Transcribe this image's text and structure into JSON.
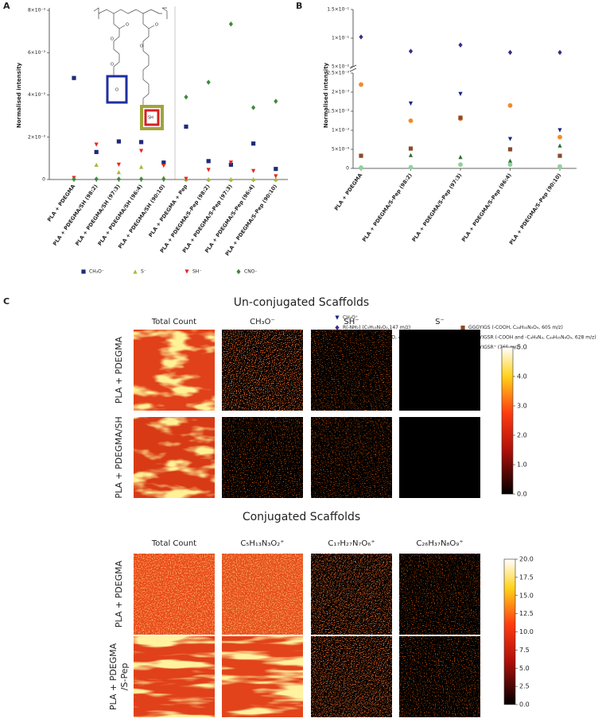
{
  "panel_labels": [
    "A",
    "B",
    "C"
  ],
  "structure": {
    "labels": [
      "O",
      "O",
      "O",
      "O",
      "O",
      "O",
      "SH"
    ]
  },
  "chart_data": [
    {
      "type": "dot",
      "y_label": "Normalised intensity",
      "categories": [
        "PLA + PDEGMA",
        "PLA + PDEGMA/SH (98:2)",
        "PLA + PDEGMA/SH (97:3)",
        "PLA + PDEGMA/SH (96:4)",
        "PLA + PDEGMA/SH (90:10)",
        "PLA + PDEGMA + Pep",
        "PLA + PDEGMA/S-Pep (98:2)",
        "PLA + PDEGMA/S-Pep (97:3)",
        "PLA + PDEGMA/S-Pep (96:4)",
        "PLA + PDEGMA/S-Pep (90:10)"
      ],
      "ylim": [
        0,
        0.008
      ],
      "yticks": [
        0,
        {
          "value": 0.002,
          "label": "2×10⁻³"
        },
        {
          "value": 0.004,
          "label": "4×10⁻³"
        },
        {
          "value": 0.006,
          "label": "6×10⁻³"
        },
        {
          "value": 0.008,
          "label": "8×10⁻³"
        }
      ],
      "series": [
        {
          "name": "CH₃O⁻",
          "color": "#1f2a7a",
          "marker": "square",
          "values": [
            0.0048,
            0.0013,
            0.0018,
            0.00177,
            0.0008,
            0.0025,
            0.00087,
            0.0007,
            0.0017,
            0.0005
          ]
        },
        {
          "name": "S⁻",
          "color": "#a8b83a",
          "marker": "triangle",
          "values": [
            5e-05,
            0.0007,
            0.00035,
            0.0006,
            0.0001,
            2e-05,
            2e-05,
            2e-05,
            2e-05,
            2e-05
          ]
        },
        {
          "name": "SH⁻",
          "color": "#e8261f",
          "marker": "triangle-down",
          "values": [
            7e-05,
            0.00165,
            0.0007,
            0.00135,
            0.00065,
            3e-05,
            0.00045,
            0.0008,
            0.0004,
            0.00015
          ]
        },
        {
          "name": "CNO-",
          "color": "#3c8a3c",
          "marker": "diamond",
          "values": [
            2e-05,
            2e-05,
            2e-05,
            2e-05,
            2e-05,
            0.0039,
            0.0046,
            0.00735,
            0.0034,
            0.0037
          ]
        }
      ]
    },
    {
      "type": "dot",
      "y_label": "Normalised intensity",
      "categories": [
        "PLA + PDEGMA",
        "PLA + PDEGMA/S-Pep (98:2)",
        "PLA + PDEGMA/S-Pep (97:3)",
        "PLA + PDEGMA/S-Pep (96:4)",
        "PLA + PDEGMA/S-Pep (90:10)"
      ],
      "ylim": [
        0,
        0.0025
      ],
      "yticks": [
        0,
        {
          "value": 0.0005,
          "label": "5×10⁻⁴"
        },
        {
          "value": 0.001,
          "label": "1×10⁻³"
        },
        {
          "value": 0.0015,
          "label": "1.5×10⁻³"
        },
        {
          "value": 0.002,
          "label": "2×10⁻³"
        },
        {
          "value": 0.0025,
          "label": "2.5×10⁻³"
        }
      ],
      "upper_ylim": [
        0.05,
        0.15
      ],
      "upper_yticks": [
        {
          "value": 0.05,
          "label": "5×10⁻²"
        },
        {
          "value": 0.1,
          "label": "1×10⁻¹"
        },
        {
          "value": 0.15,
          "label": "1.5×10⁻¹"
        }
      ],
      "series": [
        {
          "name": "CH₃O⁺",
          "color": "#1a237e",
          "marker": "triangle-down",
          "values": [
            0.00033,
            0.0017,
            0.00195,
            0.00077,
            0.001
          ]
        },
        {
          "name": "R(-NH₂) (C₅H₁₃N₃O₂,147 m/z)",
          "color": "#3d2a86",
          "marker": "diamond",
          "axis": "upper",
          "values": [
            0.102,
            0.077,
            0.088,
            0.075,
            0.075
          ]
        },
        {
          "name": "IGSR (-NH₂, C₁₇H₂₇N₇O, 425 m/z)",
          "color": "#f28a2a",
          "marker": "circle",
          "values": [
            0.0022,
            0.00125,
            0.0013,
            0.00165,
            0.00082
          ]
        },
        {
          "name": "GGGYIGS  (-COOH, C₂₆H₃₅N₅O₉, 605 m/z)",
          "color": "#8b4a2b",
          "marker": "square",
          "values": [
            0.00033,
            0.00052,
            0.00133,
            0.0005,
            0.00033
          ]
        },
        {
          "name": "GGGYIGSR (-COOH and -C₃H₈N₃, C₂₈H₃₅N₆O₉, 628 m/z)",
          "color": "#2e6b2e",
          "marker": "triangle",
          "values": [
            3e-05,
            0.00035,
            0.0003,
            0.0002,
            0.0006
          ]
        },
        {
          "name": "GGGYIGSR⁺ (765 m/z)",
          "color": "#8fd19e",
          "marker": "circle",
          "values": [
            2e-05,
            3e-05,
            0.0001,
            0.0001,
            5e-05
          ]
        }
      ]
    }
  ],
  "panel_c": {
    "sections": [
      {
        "title": "Un-conjugated Scaffolds",
        "column_headers": [
          "Total Count",
          "CH₃O⁻",
          "SH⁻",
          "S⁻"
        ],
        "row_labels": [
          [
            "PLA + PDEGMA"
          ],
          [
            "PLA + PDEGMA/SH"
          ]
        ],
        "colorbar": {
          "lim": [
            0,
            5
          ],
          "ticks": [
            {
              "value": 0,
              "label": "0.0"
            },
            {
              "value": 1,
              "label": "1.0"
            },
            {
              "value": 2,
              "label": "2.0"
            },
            {
              "value": 3,
              "label": "3.0"
            },
            {
              "value": 4,
              "label": "4.0"
            },
            {
              "value": 5,
              "label": "5.0"
            }
          ]
        }
      },
      {
        "title": "Conjugated Scaffolds",
        "column_headers": [
          "Total Count",
          "C₅H₁₃N₃O₂⁺",
          "C₁₇H₂₇N₇O₆⁺",
          "C₂₆H₃₇N₈O₉⁺"
        ],
        "row_labels": [
          [
            "PLA + PDEGMA"
          ],
          [
            "PLA + PDEGMA",
            "/S-Pep"
          ]
        ],
        "colorbar": {
          "lim": [
            0,
            20
          ],
          "ticks": [
            {
              "value": 0,
              "label": "0.0"
            },
            {
              "value": 2.5,
              "label": "2.5"
            },
            {
              "value": 5,
              "label": "5.0"
            },
            {
              "value": 7.5,
              "label": "7.5"
            },
            {
              "value": 10,
              "label": "10.0"
            },
            {
              "value": 12.5,
              "label": "12.5"
            },
            {
              "value": 15,
              "label": "15.0"
            },
            {
              "value": 17.5,
              "label": "17.5"
            },
            {
              "value": 20,
              "label": "20.0"
            }
          ]
        }
      }
    ]
  }
}
